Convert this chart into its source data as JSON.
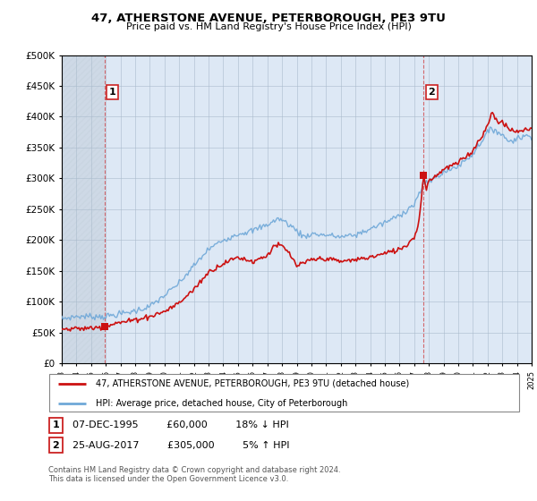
{
  "title1": "47, ATHERSTONE AVENUE, PETERBOROUGH, PE3 9TU",
  "title2": "Price paid vs. HM Land Registry's House Price Index (HPI)",
  "legend_line1": "47, ATHERSTONE AVENUE, PETERBOROUGH, PE3 9TU (detached house)",
  "legend_line2": "HPI: Average price, detached house, City of Peterborough",
  "footnote": "Contains HM Land Registry data © Crown copyright and database right 2024.\nThis data is licensed under the Open Government Licence v3.0.",
  "sale1_date": "07-DEC-1995",
  "sale1_price": "£60,000",
  "sale1_hpi": "18% ↓ HPI",
  "sale2_date": "25-AUG-2017",
  "sale2_price": "£305,000",
  "sale2_hpi": "5% ↑ HPI",
  "sale1_year": 1995.92,
  "sale1_value": 60000,
  "sale2_year": 2017.65,
  "sale2_value": 305000,
  "hpi_color": "#6fa8d8",
  "price_color": "#cc1111",
  "ylim_max": 500000,
  "ylim_min": 0,
  "xmin": 1993,
  "xmax": 2025,
  "bg_color": "#dde8f5",
  "grid_color": "#aabbcc",
  "hatch_color": "#b0bec8"
}
